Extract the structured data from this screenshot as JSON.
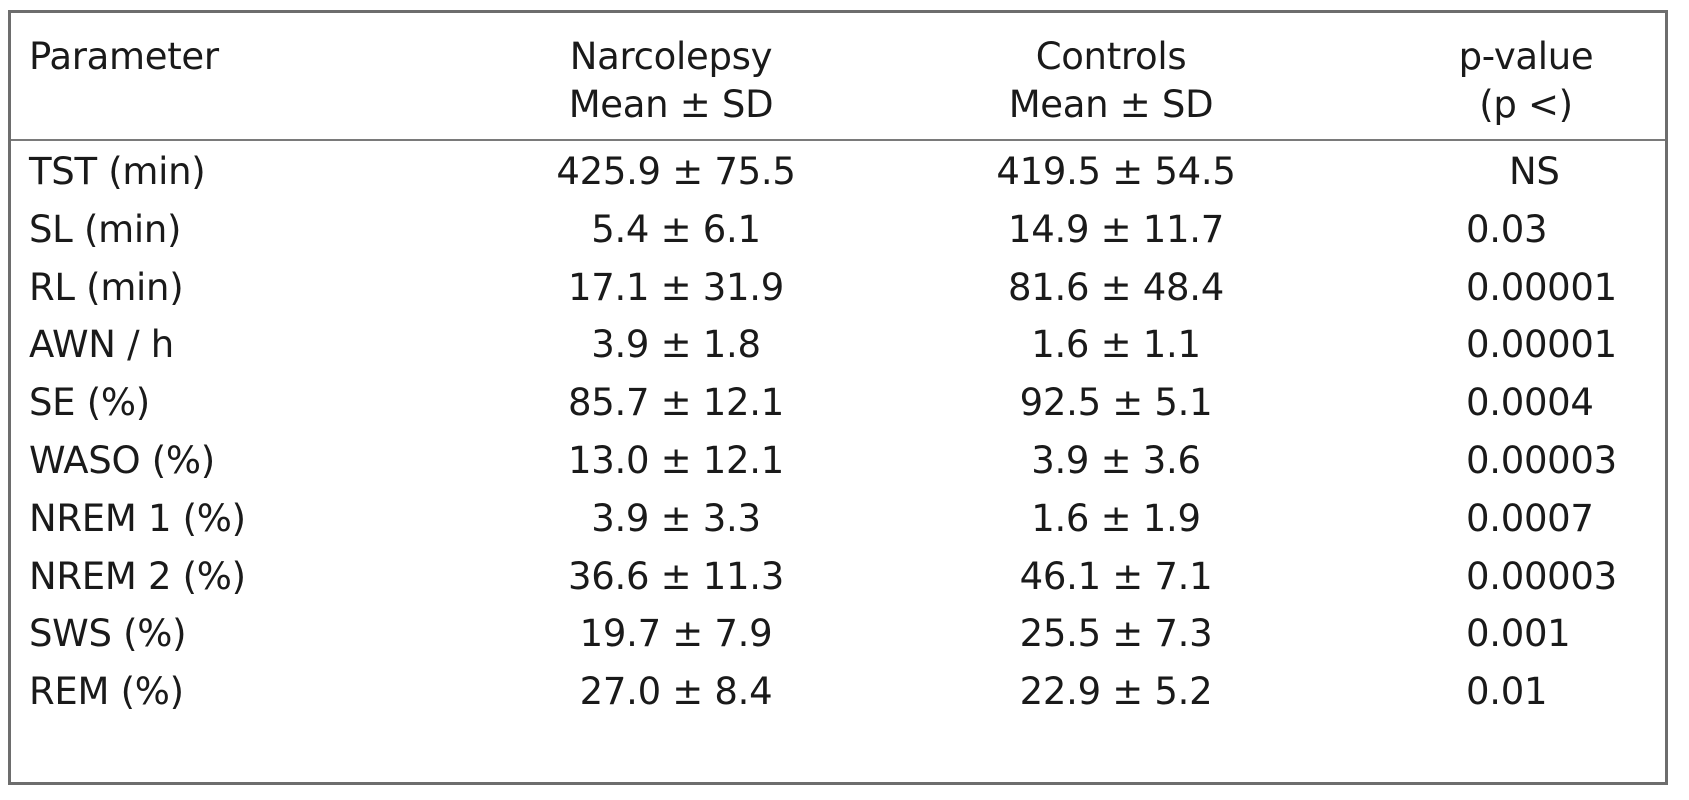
{
  "table": {
    "headers": {
      "parameter": [
        "Parameter"
      ],
      "narcolepsy": [
        "Narcolepsy",
        "Mean ± SD"
      ],
      "controls": [
        "Controls",
        "Mean ± SD"
      ],
      "pvalue": [
        "p-value",
        "(p <)"
      ]
    },
    "rows": [
      {
        "parameter": "TST (min)",
        "narcolepsy": "425.9 ± 75.5",
        "controls": "419.5 ± 54.5",
        "p": "NS"
      },
      {
        "parameter": "SL (min)",
        "narcolepsy": "5.4 ± 6.1",
        "controls": "14.9 ± 11.7",
        "p": "0.03"
      },
      {
        "parameter": "RL (min)",
        "narcolepsy": "17.1 ± 31.9",
        "controls": "81.6 ± 48.4",
        "p": "0.00001"
      },
      {
        "parameter": "AWN / h",
        "narcolepsy": "3.9 ± 1.8",
        "controls": "1.6 ± 1.1",
        "p": "0.00001"
      },
      {
        "parameter": "SE (%)",
        "narcolepsy": "85.7 ± 12.1",
        "controls": "92.5 ± 5.1",
        "p": "0.0004"
      },
      {
        "parameter": "WASO (%)",
        "narcolepsy": "13.0 ± 12.1",
        "controls": "3.9 ± 3.6",
        "p": "0.00003"
      },
      {
        "parameter": "NREM 1 (%)",
        "narcolepsy": "3.9 ± 3.3",
        "controls": "1.6 ± 1.9",
        "p": "0.0007"
      },
      {
        "parameter": "NREM 2 (%)",
        "narcolepsy": "36.6 ± 11.3",
        "controls": "46.1 ± 7.1",
        "p": "0.00003"
      },
      {
        "parameter": "SWS (%)",
        "narcolepsy": "19.7 ± 7.9",
        "controls": "25.5 ± 7.3",
        "p": "0.001"
      },
      {
        "parameter": "REM (%)",
        "narcolepsy": "27.0 ± 8.4",
        "controls": "22.9 ± 5.2",
        "p": "0.01"
      }
    ]
  }
}
